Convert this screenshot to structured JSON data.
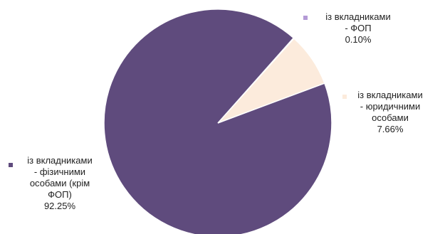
{
  "chart_data": {
    "type": "pie",
    "title": "",
    "slices": [
      {
        "label_lines": [
          "із вкладниками",
          "- фізичними",
          "особами (крім",
          "ФОП)"
        ],
        "value": 92.25,
        "value_label": "92.25%",
        "color": "#5f4b7d"
      },
      {
        "label_lines": [
          "із вкладниками",
          "- юридичними",
          "особами"
        ],
        "value": 7.66,
        "value_label": "7.66%",
        "color": "#fcebdc"
      },
      {
        "label_lines": [
          "із вкладниками",
          "- ФОП"
        ],
        "value": 0.1,
        "value_label": "0.10%",
        "color": "#b49ad6"
      }
    ],
    "legend": "labels beside slices"
  }
}
